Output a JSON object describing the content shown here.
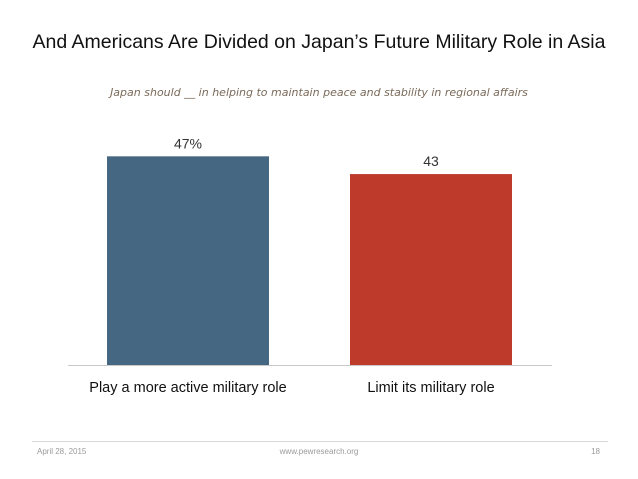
{
  "chart_data": {
    "type": "bar",
    "title": "And Americans Are Divided on Japan’s Future Military Role in Asia",
    "subtitle": "Japan should __ in helping to maintain peace and stability in regional affairs",
    "categories": [
      "Play a more active military role",
      "Limit its military role"
    ],
    "values": [
      47,
      43
    ],
    "value_labels": [
      "47%",
      "43"
    ],
    "colors": [
      "#456781",
      "#be3a2a"
    ],
    "ylim": [
      0,
      50
    ],
    "grid": false,
    "legend": "none"
  },
  "footer": {
    "date": "April 28, 2015",
    "url": "www.pewresearch.org",
    "page": "18"
  }
}
